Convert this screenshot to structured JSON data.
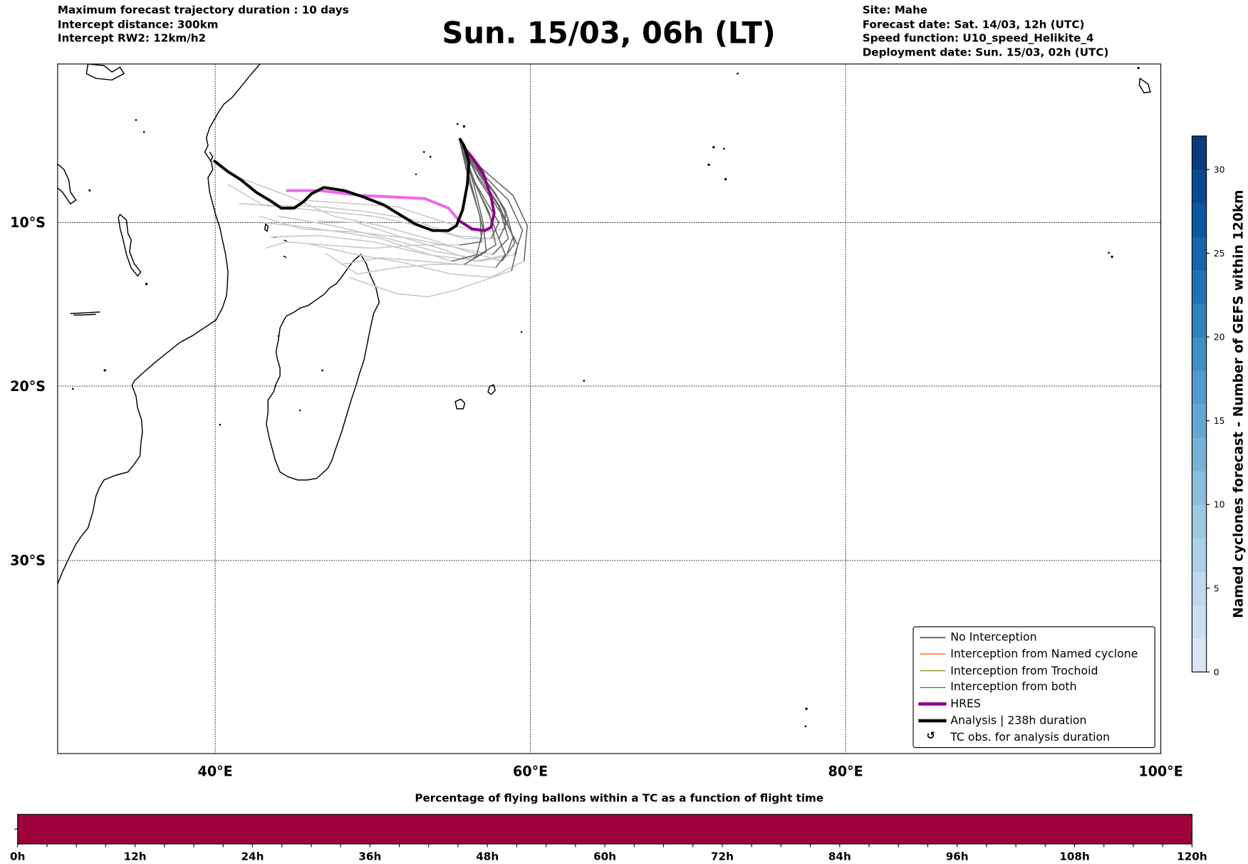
{
  "header": {
    "left_lines": [
      "Maximum forecast trajectory duration : 10 days",
      "Intercept distance: 300km",
      "Intercept RW2: 12km/h2"
    ],
    "title": "Sun. 15/03, 06h (LT)",
    "right_lines": [
      "Site: Mahe",
      "Forecast date: Sat. 14/03, 12h (UTC)",
      "Speed function: U10_speed_Helikite_4",
      "Deployment date: Sun. 15/03, 02h (UTC)"
    ]
  },
  "colors": {
    "ensemble_early": "#666666",
    "ensemble_late": "#c8c8c8",
    "hres_early": "#8b008b",
    "hres_late": "#ee66ee",
    "analysis": "#000000",
    "bar_fill": "#9e003a"
  },
  "chart_data": [
    {
      "type": "line",
      "kind": "map-trajectories",
      "lon_range": [
        30,
        100
      ],
      "lat_range": [
        -40,
        0
      ],
      "lon_ticks": [
        {
          "v": 40,
          "label": "40°E"
        },
        {
          "v": 60,
          "label": "60°E"
        },
        {
          "v": 80,
          "label": "80°E"
        },
        {
          "v": 100,
          "label": "100°E"
        }
      ],
      "lat_ticks": [
        {
          "v": -10,
          "label": "10°S"
        },
        {
          "v": -20,
          "label": "20°S"
        },
        {
          "v": -30,
          "label": "30°S"
        }
      ],
      "grid": true,
      "analysis": [
        [
          55.5,
          -4.7
        ],
        [
          55.8,
          -5.2
        ],
        [
          56.1,
          -6.2
        ],
        [
          56.0,
          -7.6
        ],
        [
          55.7,
          -9.2
        ],
        [
          55.3,
          -10.2
        ],
        [
          54.8,
          -10.5
        ],
        [
          53.8,
          -10.5
        ],
        [
          52.7,
          -10.1
        ],
        [
          51.7,
          -9.5
        ],
        [
          50.7,
          -8.9
        ],
        [
          49.4,
          -8.4
        ],
        [
          48.2,
          -8.0
        ],
        [
          46.9,
          -7.8
        ],
        [
          46.1,
          -8.2
        ],
        [
          45.6,
          -8.7
        ],
        [
          45.0,
          -9.1
        ],
        [
          44.2,
          -9.1
        ],
        [
          43.6,
          -8.7
        ],
        [
          42.6,
          -8.1
        ],
        [
          41.6,
          -7.3
        ],
        [
          40.8,
          -6.8
        ],
        [
          39.9,
          -6.1
        ]
      ],
      "hres": [
        [
          55.7,
          -5.2
        ],
        [
          56.3,
          -5.9
        ],
        [
          57.0,
          -6.9
        ],
        [
          57.5,
          -8.4
        ],
        [
          57.7,
          -9.4
        ],
        [
          57.5,
          -10.3
        ],
        [
          57.1,
          -10.5
        ],
        [
          56.3,
          -10.4
        ],
        [
          55.5,
          -9.9
        ],
        [
          54.8,
          -9.1
        ],
        [
          53.3,
          -8.5
        ],
        [
          51.2,
          -8.4
        ],
        [
          49.2,
          -8.3
        ],
        [
          46.7,
          -8.0
        ],
        [
          44.5,
          -8.0
        ]
      ],
      "hres_split_index": 9,
      "ensemble_split_index": 5,
      "ensemble": [
        [
          [
            55.5,
            -4.8
          ],
          [
            56.6,
            -7.0
          ],
          [
            58.0,
            -9.0
          ],
          [
            58.6,
            -11.0
          ],
          [
            57.6,
            -12.0
          ],
          [
            55.5,
            -11.6
          ],
          [
            52.5,
            -11.0
          ],
          [
            49.0,
            -10.6
          ],
          [
            45.5,
            -10.4
          ],
          [
            42.8,
            -9.6
          ]
        ],
        [
          [
            55.5,
            -4.8
          ],
          [
            56.8,
            -6.8
          ],
          [
            58.6,
            -8.6
          ],
          [
            59.5,
            -10.5
          ],
          [
            59.0,
            -12.0
          ],
          [
            56.8,
            -12.4
          ],
          [
            53.5,
            -12.0
          ],
          [
            50.0,
            -11.2
          ],
          [
            46.5,
            -10.8
          ],
          [
            43.5,
            -10.9
          ]
        ],
        [
          [
            55.5,
            -4.8
          ],
          [
            56.3,
            -7.2
          ],
          [
            57.4,
            -9.4
          ],
          [
            57.8,
            -11.4
          ],
          [
            56.4,
            -12.2
          ],
          [
            54.0,
            -11.8
          ],
          [
            51.0,
            -11.0
          ],
          [
            47.5,
            -10.2
          ],
          [
            44.0,
            -9.6
          ]
        ],
        [
          [
            55.5,
            -4.8
          ],
          [
            56.9,
            -6.6
          ],
          [
            58.9,
            -8.3
          ],
          [
            59.8,
            -10.2
          ],
          [
            59.6,
            -12.4
          ],
          [
            57.5,
            -13.4
          ],
          [
            55.0,
            -13.2
          ],
          [
            52.0,
            -12.5
          ],
          [
            49.0,
            -12.0
          ],
          [
            45.8,
            -11.3
          ]
        ],
        [
          [
            55.5,
            -4.8
          ],
          [
            56.4,
            -7.6
          ],
          [
            57.0,
            -10.0
          ],
          [
            57.2,
            -11.8
          ],
          [
            55.8,
            -12.6
          ],
          [
            53.8,
            -12.6
          ],
          [
            51.5,
            -12.8
          ],
          [
            49.0,
            -13.2
          ],
          [
            47.0,
            -11.9
          ]
        ],
        [
          [
            55.5,
            -4.8
          ],
          [
            56.7,
            -7.3
          ],
          [
            58.2,
            -9.5
          ],
          [
            59.2,
            -11.4
          ],
          [
            58.8,
            -13.0
          ],
          [
            57.0,
            -13.6
          ],
          [
            55.2,
            -14.2
          ],
          [
            53.5,
            -14.6
          ],
          [
            51.5,
            -14.4
          ],
          [
            48.5,
            -13.4
          ]
        ],
        [
          [
            55.5,
            -4.8
          ],
          [
            56.2,
            -7.0
          ],
          [
            57.2,
            -8.7
          ],
          [
            58.0,
            -10.0
          ],
          [
            57.5,
            -11.0
          ],
          [
            55.2,
            -10.8
          ],
          [
            52.5,
            -9.8
          ],
          [
            49.5,
            -9.3
          ],
          [
            46.5,
            -9.0
          ],
          [
            43.0,
            -8.9
          ],
          [
            40.8,
            -7.6
          ]
        ],
        [
          [
            55.5,
            -4.8
          ],
          [
            56.5,
            -6.6
          ],
          [
            57.8,
            -8.2
          ],
          [
            58.6,
            -9.8
          ],
          [
            58.0,
            -11.0
          ],
          [
            55.8,
            -11.0
          ],
          [
            53.0,
            -10.2
          ],
          [
            50.0,
            -9.6
          ],
          [
            47.0,
            -9.3
          ],
          [
            44.0,
            -9.0
          ],
          [
            41.5,
            -8.8
          ]
        ],
        [
          [
            55.5,
            -4.8
          ],
          [
            56.1,
            -7.4
          ],
          [
            56.8,
            -9.6
          ],
          [
            56.9,
            -11.2
          ],
          [
            55.5,
            -11.4
          ],
          [
            52.8,
            -11.4
          ],
          [
            50.0,
            -11.6
          ],
          [
            47.0,
            -11.4
          ],
          [
            44.5,
            -11.2
          ],
          [
            43.2,
            -11.6
          ]
        ],
        [
          [
            55.5,
            -4.8
          ],
          [
            56.6,
            -7.8
          ],
          [
            57.6,
            -10.0
          ],
          [
            58.4,
            -12.0
          ],
          [
            57.8,
            -12.8
          ],
          [
            55.6,
            -12.6
          ],
          [
            53.2,
            -12.4
          ],
          [
            50.5,
            -12.2
          ],
          [
            48.0,
            -12.6
          ]
        ],
        [
          [
            55.5,
            -4.8
          ],
          [
            56.9,
            -7.0
          ],
          [
            58.4,
            -9.2
          ],
          [
            59.0,
            -11.3
          ],
          [
            58.2,
            -12.4
          ],
          [
            56.0,
            -11.8
          ],
          [
            53.5,
            -11.0
          ],
          [
            50.5,
            -10.2
          ],
          [
            47.5,
            -9.6
          ],
          [
            44.8,
            -8.4
          ],
          [
            41.0,
            -7.0
          ]
        ],
        [
          [
            55.5,
            -4.8
          ],
          [
            56.4,
            -6.4
          ],
          [
            57.5,
            -7.8
          ],
          [
            58.4,
            -9.2
          ],
          [
            58.4,
            -10.4
          ],
          [
            56.6,
            -10.6
          ],
          [
            54.0,
            -9.8
          ],
          [
            51.5,
            -9.0
          ],
          [
            48.5,
            -8.8
          ],
          [
            45.5,
            -8.6
          ]
        ],
        [
          [
            55.5,
            -4.8
          ],
          [
            56.3,
            -7.8
          ],
          [
            57.0,
            -10.4
          ],
          [
            56.6,
            -12.0
          ],
          [
            55.0,
            -12.4
          ],
          [
            53.0,
            -11.8
          ],
          [
            50.5,
            -11.0
          ],
          [
            48.0,
            -10.6
          ],
          [
            45.0,
            -10.2
          ],
          [
            43.0,
            -10.0
          ]
        ],
        [
          [
            55.5,
            -4.8
          ],
          [
            56.7,
            -6.9
          ],
          [
            58.0,
            -8.9
          ],
          [
            58.9,
            -10.9
          ],
          [
            58.5,
            -12.0
          ],
          [
            56.5,
            -12.4
          ],
          [
            54.2,
            -11.6
          ],
          [
            51.5,
            -10.8
          ],
          [
            49.0,
            -10.0
          ],
          [
            46.5,
            -9.9
          ]
        ]
      ],
      "legend": {
        "placement": "bottom-right",
        "entries": [
          {
            "label": "No Interception",
            "color": "#777777",
            "style": "thin"
          },
          {
            "label": "Interception from Named cyclone",
            "color": "#ff4500",
            "style": "thin"
          },
          {
            "label": "Interception from Trochoid",
            "color": "#808000",
            "style": "thin"
          },
          {
            "label": "Interception from both",
            "color": "#008000",
            "style": "thin"
          },
          {
            "label": "HRES",
            "color": "#8b008b",
            "style": "thick"
          },
          {
            "label": "Analysis | 238h duration",
            "color": "#000000",
            "style": "thick"
          },
          {
            "label": "TC obs. for analysis duration",
            "color": "#000000",
            "style": "marker",
            "icon": "↺"
          }
        ]
      }
    },
    {
      "type": "heatmap",
      "kind": "colorbar",
      "label": "Named cyclones forecast - Number of GEFS within 120km",
      "range": [
        0,
        32
      ],
      "ticks": [
        0,
        5,
        10,
        15,
        20,
        25,
        30
      ],
      "bin_size": 2,
      "colors": [
        "#d8e6f4",
        "#ccdff1",
        "#bfd8ed",
        "#acd0e6",
        "#9dc9e1",
        "#89bedc",
        "#74b2d7",
        "#62a7d2",
        "#519ccc",
        "#4090c5",
        "#3181bd",
        "#2171b5",
        "#1764ab",
        "#0d57a1",
        "#084a91",
        "#083b7c"
      ]
    },
    {
      "type": "bar",
      "kind": "time-bar",
      "title": "Percentage of flying ballons within a TC as a function of flight time",
      "x_range": [
        0,
        120
      ],
      "x_major_ticks": [
        {
          "v": 0,
          "label": "0h"
        },
        {
          "v": 12,
          "label": "12h"
        },
        {
          "v": 24,
          "label": "24h"
        },
        {
          "v": 36,
          "label": "36h"
        },
        {
          "v": 48,
          "label": "48h"
        },
        {
          "v": 60,
          "label": "60h"
        },
        {
          "v": 72,
          "label": "72h"
        },
        {
          "v": 84,
          "label": "84h"
        },
        {
          "v": 96,
          "label": "96h"
        },
        {
          "v": 108,
          "label": "108h"
        },
        {
          "v": 120,
          "label": "120h"
        }
      ],
      "minor_step": 3,
      "fill_from": 0,
      "fill_to": 120,
      "fill_color": "#9e003a"
    }
  ]
}
